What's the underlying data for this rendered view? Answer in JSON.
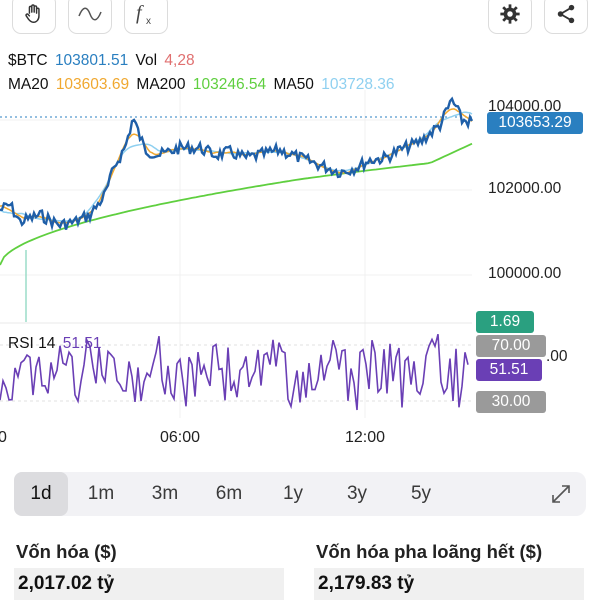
{
  "toolbar": {
    "left": [
      {
        "name": "hand-draw-icon",
        "glyph": "✋"
      },
      {
        "name": "wave-draw-icon",
        "glyph": "∼"
      },
      {
        "name": "function-icon",
        "glyph": "f×"
      }
    ],
    "right": [
      {
        "name": "settings-gear-icon",
        "glyph": "⚙"
      },
      {
        "name": "share-icon",
        "glyph": "⋖"
      }
    ]
  },
  "legend": {
    "symbol": "$BTC",
    "price": "103801.51",
    "vol_label": "Vol",
    "vol_value": "4,28",
    "ma20_label": "MA20",
    "ma20_value": "103603.69",
    "ma200_label": "MA200",
    "ma200_value": "103246.54",
    "ma50_label": "MA50",
    "ma50_value": "103728.36"
  },
  "colors": {
    "price_line": "#1f5fa8",
    "ma20": "#f0a830",
    "ma200": "#5fcf3f",
    "ma50": "#8fd0f0",
    "rsi_line": "#6a3fb5",
    "current_tag": "#2a7fc0",
    "vol_tag": "#2aa080",
    "rsi_tag": "#6a3fb5",
    "rsi_bound_tag": "#9a9a9a"
  },
  "axis": {
    "price_ticks": [
      "104000.00",
      "102000.00",
      "100000.00"
    ],
    "current_price": "103653.29",
    "volume": "1.69",
    "rsi_upper": "70.00",
    "rsi_value": "51.51",
    "rsi_lower": "30.00",
    "rsi_partial": ".00",
    "time_left_partial": "0",
    "time_labels": [
      "06:00",
      "12:00"
    ]
  },
  "rsi": {
    "label": "RSI 14",
    "value": "51.51"
  },
  "ranges": [
    "1d",
    "1m",
    "3m",
    "6m",
    "1y",
    "3y",
    "5y"
  ],
  "active_range": "1d",
  "stats": {
    "market_cap_title": "Vốn hóa ($)",
    "market_cap_value": "2,017.02 tỷ",
    "fdv_title": "Vốn hóa pha loãng hết ($)",
    "fdv_value": "2,179.83 tỷ"
  }
}
